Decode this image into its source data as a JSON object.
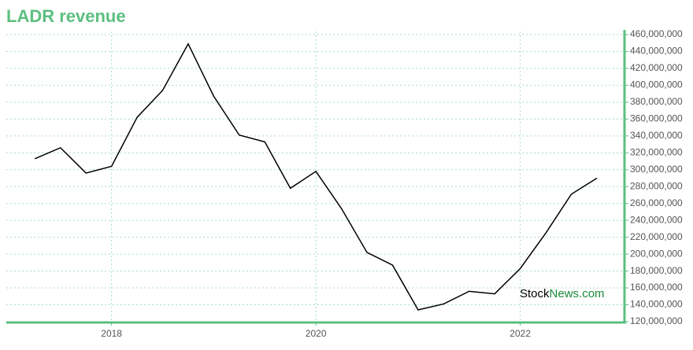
{
  "chart_data": {
    "type": "line",
    "title": "LADR revenue",
    "watermark": {
      "part1": "Stock",
      "part2": "News.com"
    },
    "x": [
      2017.25,
      2017.5,
      2017.75,
      2018,
      2018.25,
      2018.5,
      2018.75,
      2019,
      2019.25,
      2019.5,
      2019.75,
      2020,
      2020.25,
      2020.5,
      2020.75,
      2021,
      2021.25,
      2021.5,
      2021.75,
      2022,
      2022.25,
      2022.5,
      2022.75
    ],
    "series": [
      {
        "name": "LADR revenue",
        "color": "#000000",
        "values": [
          313000000,
          326000000,
          296000000,
          304000000,
          362000000,
          394000000,
          449000000,
          387000000,
          341000000,
          333000000,
          278000000,
          298000000,
          254000000,
          202000000,
          187000000,
          134000000,
          141000000,
          156000000,
          153000000,
          183000000,
          225000000,
          271000000,
          290000000
        ]
      }
    ],
    "xlim": [
      2016.97,
      2023.02
    ],
    "xticks": [
      2018,
      2020,
      2022
    ],
    "ylim": [
      120000000,
      460000000
    ],
    "yticks": [
      {
        "value": 120000000,
        "label": "120,000,000"
      },
      {
        "value": 140000000,
        "label": "140,000,000"
      },
      {
        "value": 160000000,
        "label": "160,000,000"
      },
      {
        "value": 180000000,
        "label": "180,000,000"
      },
      {
        "value": 200000000,
        "label": "200,000,000"
      },
      {
        "value": 220000000,
        "label": "220,000,000"
      },
      {
        "value": 240000000,
        "label": "240,000,000"
      },
      {
        "value": 260000000,
        "label": "260,000,000"
      },
      {
        "value": 280000000,
        "label": "280,000,000"
      },
      {
        "value": 300000000,
        "label": "300,000,000"
      },
      {
        "value": 320000000,
        "label": "320,000,000"
      },
      {
        "value": 340000000,
        "label": "340,000,000"
      },
      {
        "value": 360000000,
        "label": "360,000,000"
      },
      {
        "value": 380000000,
        "label": "380,000,000"
      },
      {
        "value": 400000000,
        "label": "400,000,000"
      },
      {
        "value": 420000000,
        "label": "420,000,000"
      },
      {
        "value": 440000000,
        "label": "440,000,000"
      },
      {
        "value": 460000000,
        "label": "460,000,000"
      }
    ],
    "grid": true,
    "axis_color": "#5cbf7f"
  }
}
